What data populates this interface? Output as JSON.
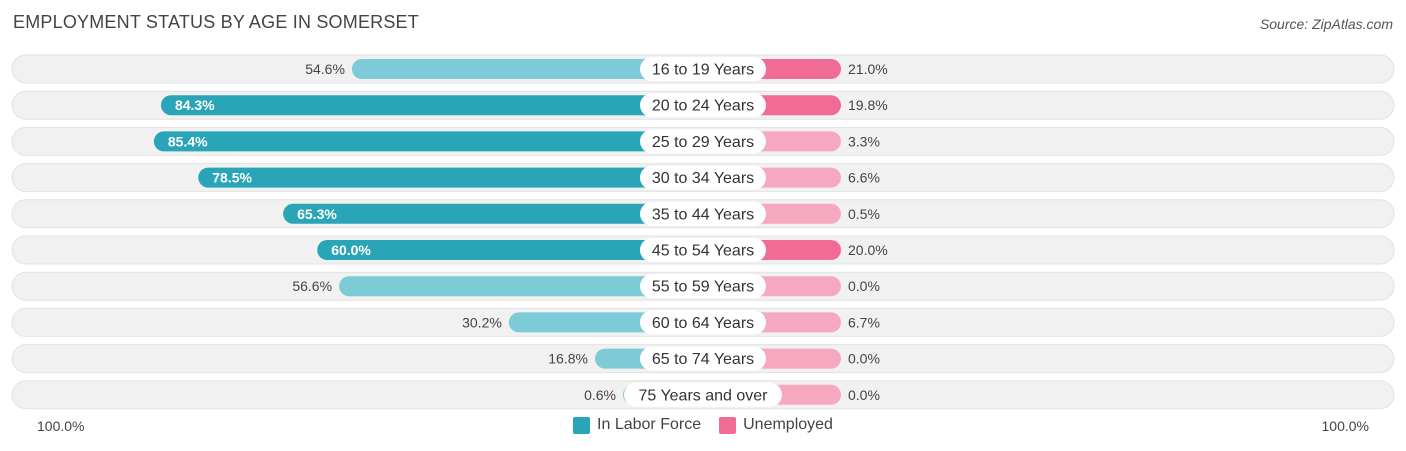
{
  "title": "EMPLOYMENT STATUS BY AGE IN SOMERSET",
  "source": "Source: ZipAtlas.com",
  "colors": {
    "labor_dark": "#2aa5b8",
    "labor_light": "#7ccbd6",
    "unemp_dark": "#f06b96",
    "unemp_light": "#f6a8c1",
    "track": "#f1f1f1"
  },
  "legend": {
    "labor": "In Labor Force",
    "unemployed": "Unemployed"
  },
  "axis": {
    "left": "100.0%",
    "right": "100.0%"
  },
  "chart_data": {
    "type": "bar",
    "orientation": "horizontal-diverging",
    "xlim": [
      -100,
      100
    ],
    "categories": [
      "16 to 19 Years",
      "20 to 24 Years",
      "25 to 29 Years",
      "30 to 34 Years",
      "35 to 44 Years",
      "45 to 54 Years",
      "55 to 59 Years",
      "60 to 64 Years",
      "65 to 74 Years",
      "75 Years and over"
    ],
    "series": [
      {
        "name": "In Labor Force",
        "values": [
          54.6,
          84.3,
          85.4,
          78.5,
          65.3,
          60.0,
          56.6,
          30.2,
          16.8,
          0.6
        ],
        "labels": [
          "54.6%",
          "84.3%",
          "85.4%",
          "78.5%",
          "65.3%",
          "60.0%",
          "56.6%",
          "30.2%",
          "16.8%",
          "0.6%"
        ]
      },
      {
        "name": "Unemployed",
        "values": [
          21.0,
          19.8,
          3.3,
          6.6,
          0.5,
          20.0,
          0.0,
          6.7,
          0.0,
          0.0
        ],
        "labels": [
          "21.0%",
          "19.8%",
          "3.3%",
          "6.6%",
          "0.5%",
          "20.0%",
          "0.0%",
          "6.7%",
          "0.0%",
          "0.0%"
        ]
      }
    ]
  }
}
